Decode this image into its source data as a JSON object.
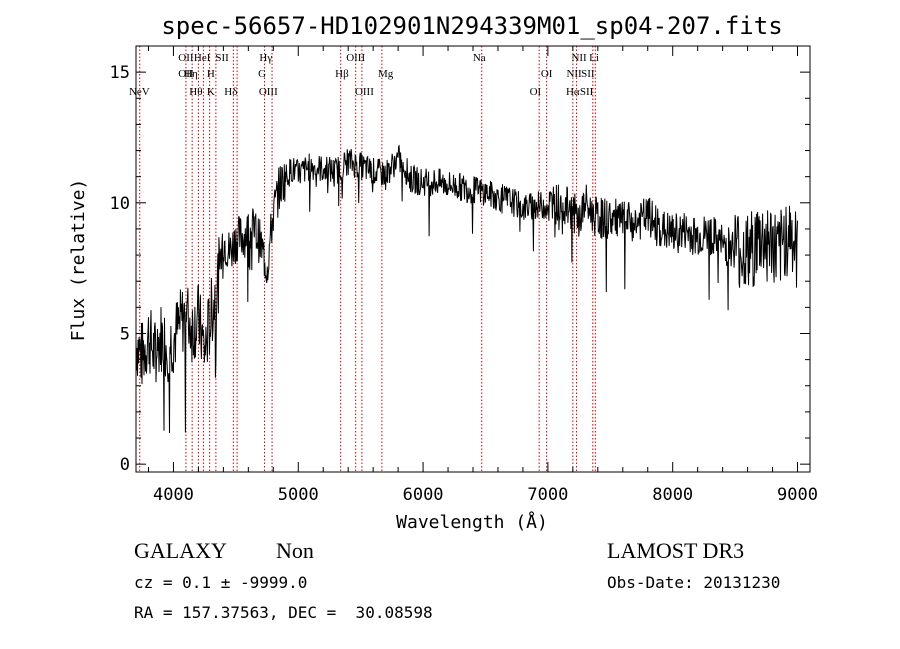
{
  "chart_data": {
    "type": "line",
    "title": "spec-56657-HD102901N294339M01_sp04-207.fits",
    "xlabel": "Wavelength (Å)",
    "ylabel": "Flux (relative)",
    "xlim": [
      3700,
      9100
    ],
    "ylim": [
      -0.3,
      16.0
    ],
    "x_ticks": [
      4000,
      5000,
      6000,
      7000,
      8000,
      9000
    ],
    "x_tick_labels": [
      "4000",
      "5000",
      "6000",
      "7000",
      "8000",
      "9000"
    ],
    "y_ticks": [
      0,
      5,
      10,
      15
    ],
    "y_tick_labels": [
      "0",
      "5",
      "10",
      "15"
    ],
    "grid": false,
    "line_color": "#000000",
    "marker_color": "#cc0000",
    "spectrum": {
      "x": [
        3700,
        3750,
        3800,
        3850,
        3900,
        3950,
        4000,
        4050,
        4100,
        4150,
        4200,
        4250,
        4300,
        4350,
        4400,
        4450,
        4500,
        4550,
        4600,
        4650,
        4700,
        4750,
        4800,
        4850,
        4900,
        4950,
        5000,
        5100,
        5200,
        5300,
        5400,
        5500,
        5600,
        5700,
        5800,
        5850,
        5900,
        6000,
        6100,
        6200,
        6300,
        6400,
        6500,
        6600,
        6700,
        6800,
        6900,
        7000,
        7100,
        7200,
        7250,
        7300,
        7350,
        7400,
        7500,
        7600,
        7700,
        7800,
        7900,
        8000,
        8100,
        8200,
        8300,
        8400,
        8500,
        8600,
        8700,
        8800,
        8850,
        8900,
        8950,
        9000
      ],
      "y": [
        4.7,
        4.1,
        4.9,
        4.2,
        4.9,
        4.5,
        4.8,
        5.3,
        5.8,
        5.2,
        5.6,
        4.3,
        5.7,
        6.8,
        8.6,
        8.1,
        8.6,
        8.7,
        8.9,
        9.0,
        8.4,
        7.5,
        9.6,
        10.6,
        11.0,
        11.3,
        11.1,
        11.4,
        11.3,
        11.2,
        11.6,
        11.4,
        11.2,
        11.1,
        11.7,
        11.4,
        10.9,
        10.8,
        10.8,
        10.7,
        10.6,
        10.5,
        10.4,
        10.2,
        10.1,
        9.8,
        9.9,
        9.9,
        10.0,
        9.7,
        9.3,
        10.0,
        9.6,
        9.4,
        9.4,
        9.3,
        9.2,
        9.5,
        9.0,
        8.8,
        8.9,
        8.7,
        8.8,
        8.4,
        8.3,
        8.0,
        8.6,
        8.4,
        7.9,
        8.7,
        8.9,
        7.8
      ]
    },
    "lines": [
      {
        "label": "NeV",
        "x": 3727,
        "row": 3
      },
      {
        "label": "OII",
        "x": 4100,
        "row": 1
      },
      {
        "label": "OII",
        "x": 4100,
        "row": 2
      },
      {
        "label": "Hη",
        "x": 4140,
        "row": 2
      },
      {
        "label": "Hθ",
        "x": 4180,
        "row": 3
      },
      {
        "label": "HeI",
        "x": 4230,
        "row": 1
      },
      {
        "label": "H",
        "x": 4300,
        "row": 2
      },
      {
        "label": "K",
        "x": 4300,
        "row": 3
      },
      {
        "label": "SII",
        "x": 4390,
        "row": 1
      },
      {
        "label": "Hδ",
        "x": 4460,
        "row": 3
      },
      {
        "label": "Hγ",
        "x": 4740,
        "row": 1
      },
      {
        "label": "G",
        "x": 4710,
        "row": 2
      },
      {
        "label": "OIII",
        "x": 4760,
        "row": 3
      },
      {
        "label": "Hβ",
        "x": 5350,
        "row": 2
      },
      {
        "label": "OIII",
        "x": 5460,
        "row": 1
      },
      {
        "label": "OIII",
        "x": 5530,
        "row": 3
      },
      {
        "label": "Mg",
        "x": 5700,
        "row": 2
      },
      {
        "label": "Na",
        "x": 6450,
        "row": 0
      },
      {
        "label": "OI",
        "x": 6900,
        "row": 3
      },
      {
        "label": "OI",
        "x": 6990,
        "row": 2
      },
      {
        "label": "NII",
        "x": 7250,
        "row": 1
      },
      {
        "label": "NII",
        "x": 7210,
        "row": 2
      },
      {
        "label": "Hα",
        "x": 7200,
        "row": 3
      },
      {
        "label": "SII",
        "x": 7320,
        "row": 2
      },
      {
        "label": "SII",
        "x": 7310,
        "row": 3
      },
      {
        "label": "Li",
        "x": 7370,
        "row": 1
      }
    ],
    "marker_x": [
      3730,
      4100,
      4150,
      4200,
      4240,
      4290,
      4340,
      4480,
      4510,
      4730,
      4790,
      5340,
      5460,
      5510,
      5670,
      6470,
      6930,
      6990,
      7200,
      7230,
      7360,
      7380
    ]
  },
  "info": {
    "object_class": "GALAXY",
    "subclass": "Non",
    "survey": "LAMOST DR3",
    "cz_line": "cz = 0.1 ± -9999.0",
    "obs_date": "Obs-Date: 20131230",
    "coords": "RA = 157.37563, DEC =  30.08598"
  }
}
